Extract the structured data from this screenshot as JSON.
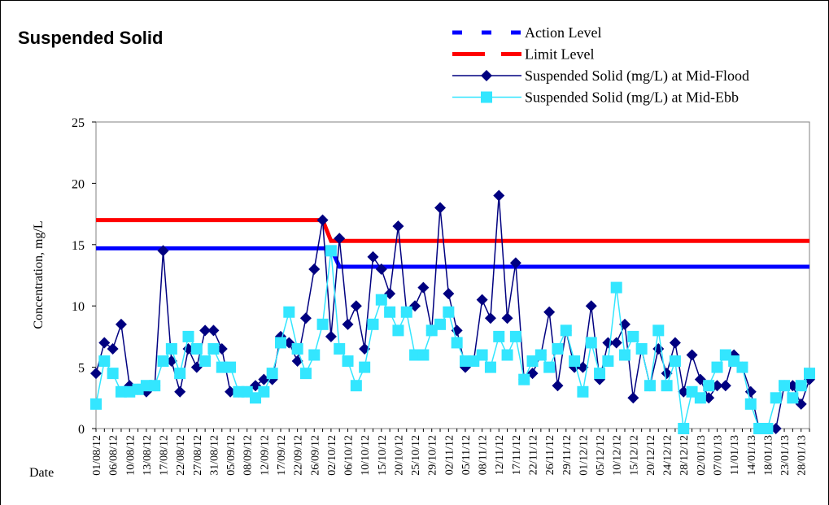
{
  "chart_data": {
    "type": "line",
    "title": "Suspended Solid",
    "y_label": "Concentration, mg/L",
    "x_label": "Date",
    "categories": [
      "01/08/12",
      null,
      "06/08/12",
      null,
      "10/08/12",
      null,
      "13/08/12",
      null,
      "17/08/12",
      null,
      "22/08/12",
      null,
      "27/08/12",
      null,
      "31/08/12",
      null,
      "05/09/12",
      null,
      "08/09/12",
      null,
      "12/09/12",
      null,
      "17/09/12",
      null,
      "22/09/12",
      null,
      "26/09/12",
      null,
      "02/10/12",
      null,
      "06/10/12",
      null,
      "10/10/12",
      null,
      "15/10/12",
      null,
      "20/10/12",
      null,
      "25/10/12",
      null,
      "29/10/12",
      null,
      "02/11/12",
      null,
      "05/11/12",
      null,
      "08/11/12",
      null,
      "12/11/12",
      null,
      "17/11/12",
      null,
      "22/11/12",
      null,
      "26/11/12",
      null,
      "29/11/12",
      null,
      "01/12/12",
      null,
      "05/12/12",
      null,
      "10/12/12",
      null,
      "15/12/12",
      null,
      "20/12/12",
      null,
      "24/12/12",
      null,
      "28/12/12",
      null,
      "02/01/13",
      null,
      "07/01/13",
      null,
      "11/01/13",
      null,
      "14/01/13",
      null,
      "18/01/13",
      null,
      "23/01/13",
      null,
      "28/01/13",
      null
    ],
    "ylim": [
      0,
      25
    ],
    "yticks": [
      0,
      5,
      10,
      15,
      20,
      25
    ],
    "series": [
      {
        "name": "Action Level",
        "color": "#0000ff",
        "marker": "none",
        "legend_style": "dashed",
        "values": [
          14.7,
          14.7,
          14.7,
          14.7,
          14.7,
          14.7,
          14.7,
          14.7,
          14.7,
          14.7,
          14.7,
          14.7,
          14.7,
          14.7,
          14.7,
          14.7,
          14.7,
          14.7,
          14.7,
          14.7,
          14.7,
          14.7,
          14.7,
          14.7,
          14.7,
          14.7,
          14.7,
          14.7,
          14.7,
          13.2,
          13.2,
          13.2,
          13.2,
          13.2,
          13.2,
          13.2,
          13.2,
          13.2,
          13.2,
          13.2,
          13.2,
          13.2,
          13.2,
          13.2,
          13.2,
          13.2,
          13.2,
          13.2,
          13.2,
          13.2,
          13.2,
          13.2,
          13.2,
          13.2,
          13.2,
          13.2,
          13.2,
          13.2,
          13.2,
          13.2,
          13.2,
          13.2,
          13.2,
          13.2,
          13.2,
          13.2,
          13.2,
          13.2,
          13.2,
          13.2,
          13.2,
          13.2,
          13.2,
          13.2,
          13.2,
          13.2,
          13.2,
          13.2,
          13.2,
          13.2,
          13.2,
          13.2,
          13.2,
          13.2,
          13.2,
          13.2
        ]
      },
      {
        "name": "Limit Level",
        "color": "#ff0000",
        "marker": "none",
        "legend_style": "dashed",
        "values": [
          17,
          17,
          17,
          17,
          17,
          17,
          17,
          17,
          17,
          17,
          17,
          17,
          17,
          17,
          17,
          17,
          17,
          17,
          17,
          17,
          17,
          17,
          17,
          17,
          17,
          17,
          17,
          17,
          15.3,
          15.3,
          15.3,
          15.3,
          15.3,
          15.3,
          15.3,
          15.3,
          15.3,
          15.3,
          15.3,
          15.3,
          15.3,
          15.3,
          15.3,
          15.3,
          15.3,
          15.3,
          15.3,
          15.3,
          15.3,
          15.3,
          15.3,
          15.3,
          15.3,
          15.3,
          15.3,
          15.3,
          15.3,
          15.3,
          15.3,
          15.3,
          15.3,
          15.3,
          15.3,
          15.3,
          15.3,
          15.3,
          15.3,
          15.3,
          15.3,
          15.3,
          15.3,
          15.3,
          15.3,
          15.3,
          15.3,
          15.3,
          15.3,
          15.3,
          15.3,
          15.3,
          15.3,
          15.3,
          15.3,
          15.3,
          15.3,
          15.3
        ]
      },
      {
        "name": "Suspended Solid (mg/L) at Mid-Flood",
        "color": "#000080",
        "marker": "diamond",
        "values": [
          4.5,
          7,
          6.5,
          8.5,
          3.5,
          3.2,
          3,
          3.5,
          14.5,
          5.5,
          3,
          6.5,
          5,
          8,
          8,
          6.5,
          3,
          3,
          3,
          3.5,
          4,
          4,
          7.5,
          7,
          5.5,
          9,
          13,
          17,
          7.5,
          15.5,
          8.5,
          10,
          6.5,
          14,
          13,
          11,
          16.5,
          9.5,
          10,
          11.5,
          8,
          18,
          11,
          8,
          5,
          5.5,
          10.5,
          9,
          19,
          9,
          13.5,
          4,
          4.5,
          6,
          9.5,
          3.5,
          8,
          5,
          5,
          10,
          4,
          7,
          7,
          8.5,
          2.5,
          6.5,
          3.5,
          6.5,
          4.5,
          7,
          3,
          6,
          4,
          2.5,
          3.5,
          3.5,
          6,
          5,
          3,
          0,
          0,
          0,
          3.5,
          3.5,
          2,
          4
        ]
      },
      {
        "name": "Suspended Solid (mg/L) at Mid-Ebb",
        "color": "#33e6ff",
        "marker": "square",
        "values": [
          2,
          5.5,
          4.5,
          3,
          3,
          3.2,
          3.5,
          3.5,
          5.5,
          6.5,
          4.5,
          7.5,
          6.5,
          5.5,
          6.5,
          5,
          5,
          3,
          3,
          2.5,
          3,
          4.5,
          7,
          9.5,
          6.5,
          4.5,
          6,
          8.5,
          14.5,
          6.5,
          5.5,
          3.5,
          5,
          8.5,
          10.5,
          9.5,
          8,
          9.5,
          6,
          6,
          8,
          8.5,
          9.5,
          7,
          5.5,
          5.5,
          6,
          5,
          7.5,
          6,
          7.5,
          4,
          5.5,
          6,
          5,
          6.5,
          8,
          5.5,
          3,
          7,
          4.5,
          5.5,
          11.5,
          6,
          7.5,
          6.5,
          3.5,
          8,
          3.5,
          5.5,
          0,
          3,
          2.5,
          3.5,
          5,
          6,
          5.5,
          5,
          2,
          0,
          0,
          2.5,
          3.5,
          2.5,
          3.5,
          4.5
        ]
      }
    ]
  }
}
